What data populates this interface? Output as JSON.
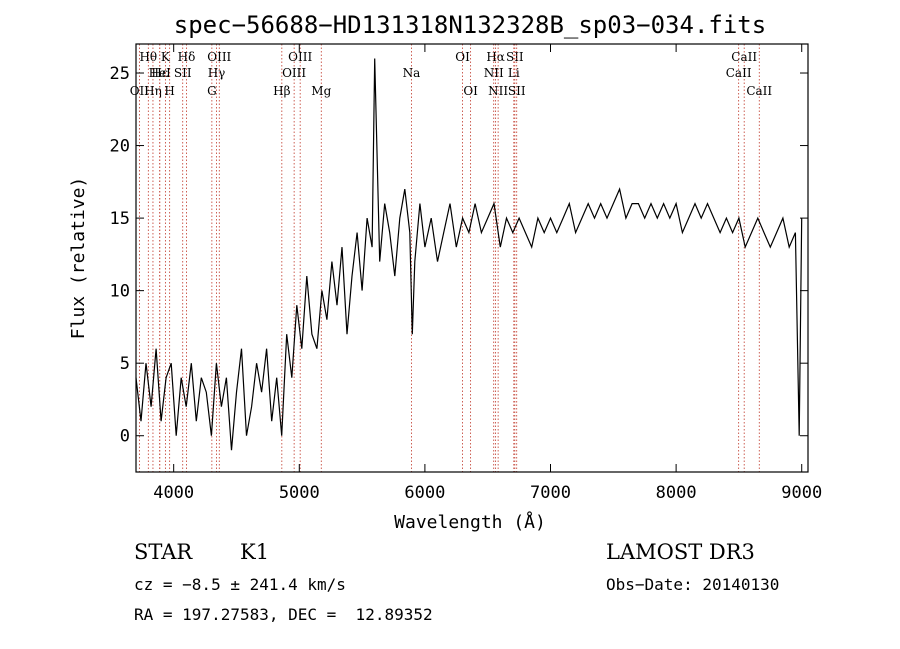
{
  "chart_data": {
    "type": "line",
    "title": "spec−56688−HD131318N132328B_sp03−034.fits",
    "xlabel": "Wavelength (Å)",
    "ylabel": "Flux (relative)",
    "xlim": [
      3700,
      9050
    ],
    "ylim": [
      -2.5,
      27
    ],
    "xticks": [
      4000,
      5000,
      6000,
      7000,
      8000,
      9000
    ],
    "yticks": [
      0,
      5,
      10,
      15,
      20,
      25
    ],
    "series": [
      {
        "name": "flux",
        "x": [
          3700,
          3740,
          3780,
          3820,
          3860,
          3900,
          3940,
          3980,
          4020,
          4060,
          4100,
          4140,
          4180,
          4220,
          4260,
          4300,
          4340,
          4380,
          4420,
          4460,
          4500,
          4540,
          4580,
          4620,
          4660,
          4700,
          4740,
          4780,
          4820,
          4860,
          4900,
          4940,
          4980,
          5020,
          5060,
          5100,
          5140,
          5180,
          5220,
          5260,
          5300,
          5340,
          5380,
          5420,
          5460,
          5500,
          5540,
          5580,
          5600,
          5640,
          5680,
          5720,
          5760,
          5800,
          5840,
          5880,
          5900,
          5920,
          5960,
          6000,
          6050,
          6100,
          6150,
          6200,
          6250,
          6300,
          6350,
          6400,
          6450,
          6500,
          6550,
          6600,
          6650,
          6700,
          6750,
          6800,
          6850,
          6900,
          6950,
          7000,
          7050,
          7100,
          7150,
          7200,
          7250,
          7300,
          7350,
          7400,
          7450,
          7500,
          7550,
          7600,
          7650,
          7700,
          7750,
          7800,
          7850,
          7900,
          7950,
          8000,
          8050,
          8100,
          8150,
          8200,
          8250,
          8300,
          8350,
          8400,
          8450,
          8500,
          8550,
          8600,
          8650,
          8700,
          8750,
          8800,
          8850,
          8900,
          8950,
          8980,
          9000
        ],
        "values": [
          4,
          1,
          5,
          2,
          6,
          1,
          4,
          5,
          0,
          4,
          2,
          5,
          1,
          4,
          3,
          0,
          5,
          2,
          4,
          -1,
          3,
          6,
          0,
          2,
          5,
          3,
          6,
          1,
          4,
          0,
          7,
          4,
          9,
          6,
          11,
          7,
          6,
          10,
          8,
          12,
          9,
          13,
          7,
          11,
          14,
          10,
          15,
          13,
          26,
          12,
          16,
          14,
          11,
          15,
          17,
          14,
          7,
          12,
          16,
          13,
          15,
          12,
          14,
          16,
          13,
          15,
          14,
          16,
          14,
          15,
          16,
          13,
          15,
          14,
          15,
          14,
          13,
          15,
          14,
          15,
          14,
          15,
          16,
          14,
          15,
          16,
          15,
          16,
          15,
          16,
          17,
          15,
          16,
          16,
          15,
          16,
          15,
          16,
          15,
          16,
          14,
          15,
          16,
          15,
          16,
          15,
          14,
          15,
          14,
          15,
          13,
          14,
          15,
          14,
          13,
          14,
          15,
          13,
          14,
          0,
          15
        ]
      }
    ],
    "line_markers": [
      {
        "name": "Hθ",
        "x": 3798,
        "row": 1
      },
      {
        "name": "OII",
        "x": 3727,
        "row": 3
      },
      {
        "name": "Hη",
        "x": 3835,
        "row": 3
      },
      {
        "name": "HeI",
        "x": 3889,
        "row": 2
      },
      {
        "name": "Hε",
        "x": 3889,
        "row": 2
      },
      {
        "name": "K",
        "x": 3934,
        "row": 1
      },
      {
        "name": "H",
        "x": 3968,
        "row": 3
      },
      {
        "name": "SII",
        "x": 4072,
        "row": 2
      },
      {
        "name": "Hδ",
        "x": 4102,
        "row": 1
      },
      {
        "name": "OIII",
        "x": 4363,
        "row": 1
      },
      {
        "name": "Hγ",
        "x": 4341,
        "row": 2
      },
      {
        "name": "G",
        "x": 4304,
        "row": 3
      },
      {
        "name": "Hβ",
        "x": 4861,
        "row": 3
      },
      {
        "name": "OIII",
        "x": 5007,
        "row": 1
      },
      {
        "name": "OIII",
        "x": 4959,
        "row": 2
      },
      {
        "name": "Mg",
        "x": 5175,
        "row": 3
      },
      {
        "name": "Na",
        "x": 5893,
        "row": 2
      },
      {
        "name": "OI",
        "x": 6300,
        "row": 1
      },
      {
        "name": "OI",
        "x": 6364,
        "row": 3
      },
      {
        "name": "Hα",
        "x": 6563,
        "row": 1
      },
      {
        "name": "NII",
        "x": 6548,
        "row": 2
      },
      {
        "name": "NII",
        "x": 6583,
        "row": 3
      },
      {
        "name": "SII",
        "x": 6716,
        "row": 1
      },
      {
        "name": "Li",
        "x": 6708,
        "row": 2
      },
      {
        "name": "SII",
        "x": 6731,
        "row": 3
      },
      {
        "name": "CaII",
        "x": 8542,
        "row": 1
      },
      {
        "name": "CaII",
        "x": 8498,
        "row": 2
      },
      {
        "name": "CaII",
        "x": 8662,
        "row": 3
      }
    ]
  },
  "info": {
    "object_class": "STAR",
    "subclass": "K1",
    "survey": "LAMOST DR3",
    "cz": "cz = −8.5 ± 241.4 km/s",
    "obs_date": "Obs−Date: 20140130",
    "coords": "RA = 197.27583, DEC =  12.89352"
  },
  "colors": {
    "line_marker": "#c0392b",
    "spectrum": "#000000"
  }
}
